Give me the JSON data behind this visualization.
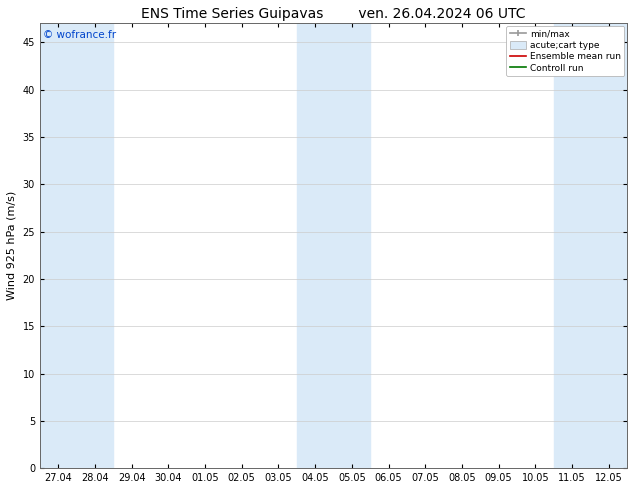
{
  "title_left": "ENS Time Series Guipavas",
  "title_right": "ven. 26.04.2024 06 UTC",
  "ylabel": "Wind 925 hPa (m/s)",
  "watermark": "© wofrance.fr",
  "watermark_color": "#0044cc",
  "ylim": [
    0,
    47
  ],
  "yticks": [
    0,
    5,
    10,
    15,
    20,
    25,
    30,
    35,
    40,
    45
  ],
  "xtick_labels": [
    "27.04",
    "28.04",
    "29.04",
    "30.04",
    "01.05",
    "02.05",
    "03.05",
    "04.05",
    "05.05",
    "06.05",
    "07.05",
    "08.05",
    "09.05",
    "10.05",
    "11.05",
    "12.05"
  ],
  "shaded_indices": [
    0,
    1,
    7,
    8,
    14,
    15
  ],
  "shade_color": "#daeaf8",
  "legend_entries": [
    {
      "label": "min/max",
      "color": "#999999"
    },
    {
      "label": "acute;cart type",
      "color": "#daeaf8"
    },
    {
      "label": "Ensemble mean run",
      "color": "#cc0000"
    },
    {
      "label": "Controll run",
      "color": "#007700"
    }
  ],
  "bg_color": "#ffffff",
  "plot_bg_color": "#ffffff",
  "grid_color": "#cccccc",
  "tick_font_size": 7,
  "title_font_size": 10,
  "label_font_size": 8
}
